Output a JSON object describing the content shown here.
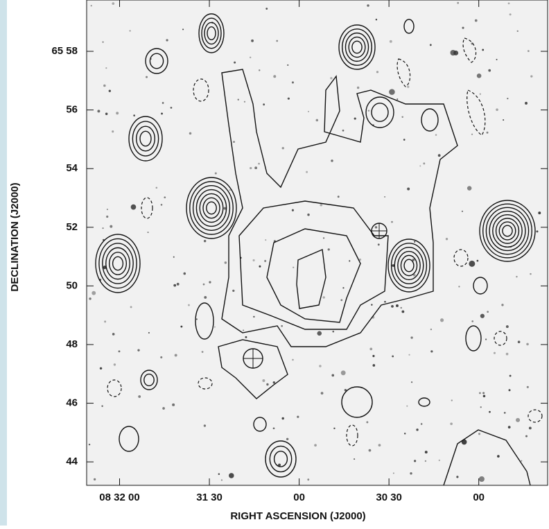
{
  "chart_data": {
    "type": "contour",
    "xlabel": "RIGHT ASCENSION (J2000)",
    "ylabel": "DECLINATION (J2000)",
    "xlim": [
      30731,
      30577
    ],
    "xticks": [
      {
        "value": 30720,
        "label": "08 32 00"
      },
      {
        "value": 30690,
        "label": "31 30"
      },
      {
        "value": 30660,
        "label": "00"
      },
      {
        "value": 30630,
        "label": "30 30"
      },
      {
        "value": 30600,
        "label": "00"
      }
    ],
    "ylim": [
      43.2,
      59.75
    ],
    "yticks": [
      {
        "value": 58,
        "label": "65 58"
      },
      56,
      54,
      52,
      50,
      48,
      46,
      44
    ]
  }
}
